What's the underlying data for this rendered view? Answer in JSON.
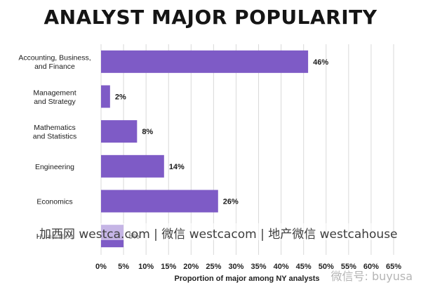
{
  "chart_data": {
    "type": "bar",
    "orientation": "horizontal",
    "title": "ANALYST MAJOR POPULARITY",
    "xlabel": "Proportion of major among NY analysts",
    "ylabel": "",
    "xlim": [
      0,
      65
    ],
    "xticks": [
      "0%",
      "5%",
      "10%",
      "15%",
      "20%",
      "25%",
      "30%",
      "35%",
      "40%",
      "45%",
      "50%",
      "55%",
      "60%",
      "65%"
    ],
    "grid": true,
    "categories": [
      [
        "Accounting, Business,",
        "and Finance"
      ],
      [
        "Management",
        "and Strategy"
      ],
      [
        "Mathematics",
        "and Statistics"
      ],
      [
        "Engineering"
      ],
      [
        "Economics"
      ],
      [
        "Humanities"
      ]
    ],
    "values": [
      46,
      2,
      8,
      14,
      26,
      5
    ],
    "value_labels": [
      "46%",
      "2%",
      "8%",
      "14%",
      "26%",
      "5%"
    ],
    "bar_color": "#7e5bc6"
  },
  "watermarks": {
    "main": "加西网 westca.com | 微信 westcacom | 地产微信 westcahouse",
    "corner": "微信号: buyusa"
  }
}
